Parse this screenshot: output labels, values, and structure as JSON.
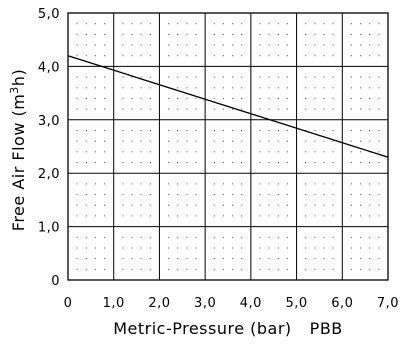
{
  "chart_data": {
    "type": "line",
    "title": "",
    "xlabel": "Metric-Pressure (bar)",
    "xlabel_suffix": "PBB",
    "ylabel_prefix": "Free Air Flow (m",
    "ylabel_superscript": "3",
    "ylabel_suffix": "h)",
    "xlim": [
      0,
      7
    ],
    "ylim": [
      0,
      5
    ],
    "x_ticks": [
      "0",
      "1,0",
      "2,0",
      "3,0",
      "4,0",
      "5,0",
      "6,0",
      "7,0"
    ],
    "y_ticks": [
      "0",
      "1,0",
      "2,0",
      "3,0",
      "4,0",
      "5,0"
    ],
    "grid": true,
    "minor_grid_style": "dotted",
    "legend": "none",
    "series": [
      {
        "x": [
          0,
          7
        ],
        "y": [
          4.2,
          2.3
        ]
      }
    ],
    "colors": {
      "line": "#000000",
      "grid": "#000000"
    }
  }
}
